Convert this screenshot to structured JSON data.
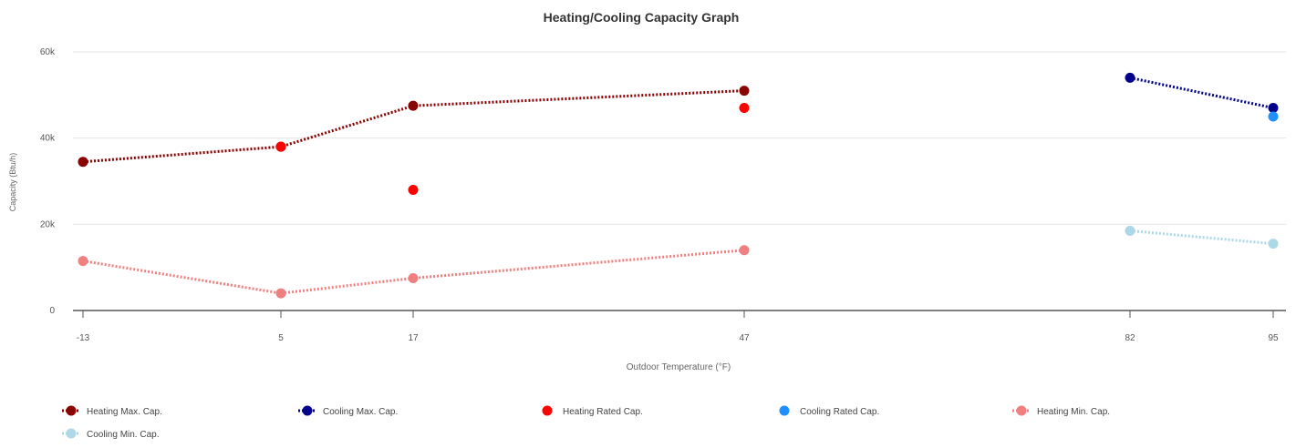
{
  "chart_data": {
    "type": "line",
    "title": "Heating/Cooling Capacity Graph",
    "xlabel": "Outdoor Temperature (°F)",
    "ylabel": "Capacity (Btu/h)",
    "x_ticks": [
      -13,
      5,
      17,
      47,
      82,
      95
    ],
    "x_tick_labels": [
      "-13",
      "5",
      "17",
      "47",
      "82",
      "95"
    ],
    "y_ticks": [
      0,
      20000,
      40000,
      60000
    ],
    "y_tick_labels": [
      "0",
      "20k",
      "40k",
      "60k"
    ],
    "ylim": [
      0,
      60000
    ],
    "grid": true,
    "legend_position": "bottom-left",
    "series": [
      {
        "name": "Heating Max. Cap.",
        "color": "#8b0000",
        "line": true,
        "points": [
          [
            -13,
            34500
          ],
          [
            5,
            38000
          ],
          [
            17,
            47500
          ],
          [
            47,
            51000
          ]
        ]
      },
      {
        "name": "Cooling Max. Cap.",
        "color": "#00008b",
        "line": true,
        "points": [
          [
            82,
            54000
          ],
          [
            95,
            47000
          ]
        ]
      },
      {
        "name": "Heating Rated Cap.",
        "color": "#ff0000",
        "line": false,
        "points": [
          [
            5,
            38000
          ],
          [
            17,
            28000
          ],
          [
            47,
            47000
          ]
        ]
      },
      {
        "name": "Cooling Rated Cap.",
        "color": "#1e90ff",
        "line": false,
        "points": [
          [
            95,
            45000
          ]
        ]
      },
      {
        "name": "Heating Min. Cap.",
        "color": "#f08080",
        "line": true,
        "points": [
          [
            -13,
            11500
          ],
          [
            5,
            4000
          ],
          [
            17,
            7500
          ],
          [
            47,
            14000
          ]
        ]
      },
      {
        "name": "Cooling Min. Cap.",
        "color": "#add8e6",
        "line": true,
        "points": [
          [
            82,
            18500
          ],
          [
            95,
            15500
          ]
        ]
      }
    ]
  }
}
